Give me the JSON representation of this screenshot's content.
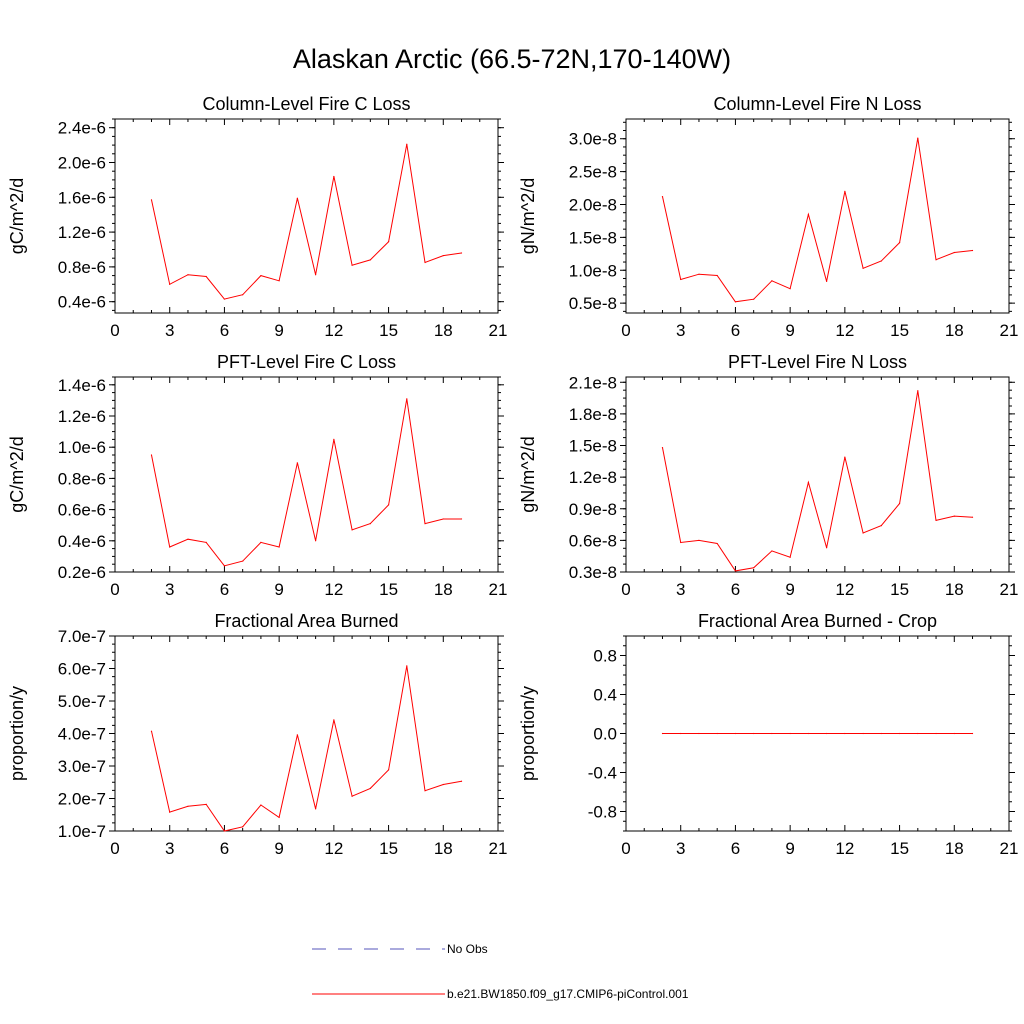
{
  "figure_title": "Alaskan Arctic (66.5-72N,170-140W)",
  "legend": {
    "items": [
      {
        "label": "No Obs",
        "color": "#3333aa",
        "style": "dashed"
      },
      {
        "label": "b.e21.BW1850.f09_g17.CMIP6-piControl.001",
        "color": "#ff0000",
        "style": "solid"
      }
    ]
  },
  "chart_data": [
    {
      "type": "line",
      "title": "Column-Level Fire C Loss",
      "xlabel": "",
      "ylabel": "gC/m^2/d",
      "xlim": [
        0,
        21
      ],
      "ylim": [
        0.27,
        2.5
      ],
      "xticks": [
        0,
        3,
        6,
        9,
        12,
        15,
        18,
        21
      ],
      "yticks": [
        0.4,
        0.8,
        1.2,
        1.6,
        2.0,
        2.4
      ],
      "ytick_labels": [
        "0.4e-6",
        "0.8e-6",
        "1.2e-6",
        "1.6e-6",
        "2.0e-6",
        "2.4e-6"
      ],
      "color": "#ff0000",
      "x": [
        2,
        3,
        4,
        5,
        6,
        7,
        8,
        9,
        10,
        11,
        12,
        13,
        14,
        15,
        16,
        17,
        18,
        19
      ],
      "y": [
        1.57,
        0.6,
        0.71,
        0.69,
        0.43,
        0.48,
        0.7,
        0.64,
        1.59,
        0.71,
        1.84,
        0.82,
        0.88,
        1.09,
        2.21,
        0.85,
        0.93,
        0.96
      ]
    },
    {
      "type": "line",
      "title": "Column-Level Fire N Loss",
      "xlabel": "",
      "ylabel": "gN/m^2/d",
      "xlim": [
        0,
        21
      ],
      "ylim": [
        0.35,
        3.3
      ],
      "xticks": [
        0,
        3,
        6,
        9,
        12,
        15,
        18,
        21
      ],
      "yticks": [
        0.5,
        1.0,
        1.5,
        2.0,
        2.5,
        3.0
      ],
      "ytick_labels": [
        "0.5e-8",
        "1.0e-8",
        "1.5e-8",
        "2.0e-8",
        "2.5e-8",
        "3.0e-8"
      ],
      "color": "#ff0000",
      "x": [
        2,
        3,
        4,
        5,
        6,
        7,
        8,
        9,
        10,
        11,
        12,
        13,
        14,
        15,
        16,
        17,
        18,
        19
      ],
      "y": [
        2.12,
        0.86,
        0.94,
        0.92,
        0.52,
        0.56,
        0.84,
        0.72,
        1.85,
        0.83,
        2.2,
        1.03,
        1.14,
        1.42,
        3.01,
        1.16,
        1.27,
        1.3
      ]
    },
    {
      "type": "line",
      "title": "PFT-Level Fire C Loss",
      "xlabel": "",
      "ylabel": "gC/m^2/d",
      "xlim": [
        0,
        21
      ],
      "ylim": [
        0.2,
        1.45
      ],
      "xticks": [
        0,
        3,
        6,
        9,
        12,
        15,
        18,
        21
      ],
      "yticks": [
        0.2,
        0.4,
        0.6,
        0.8,
        1.0,
        1.2,
        1.4
      ],
      "ytick_labels": [
        "0.2e-6",
        "0.4e-6",
        "0.6e-6",
        "0.8e-6",
        "1.0e-6",
        "1.2e-6",
        "1.4e-6"
      ],
      "color": "#ff0000",
      "x": [
        2,
        3,
        4,
        5,
        6,
        7,
        8,
        9,
        10,
        11,
        12,
        13,
        14,
        15,
        16,
        17,
        18,
        19
      ],
      "y": [
        0.95,
        0.36,
        0.41,
        0.39,
        0.24,
        0.27,
        0.39,
        0.36,
        0.9,
        0.4,
        1.05,
        0.47,
        0.51,
        0.63,
        1.31,
        0.51,
        0.54,
        0.54
      ]
    },
    {
      "type": "line",
      "title": "PFT-Level Fire N Loss",
      "xlabel": "",
      "ylabel": "gN/m^2/d",
      "xlim": [
        0,
        21
      ],
      "ylim": [
        0.3,
        2.15
      ],
      "xticks": [
        0,
        3,
        6,
        9,
        12,
        15,
        18,
        21
      ],
      "yticks": [
        0.3,
        0.6,
        0.9,
        1.2,
        1.5,
        1.8,
        2.1
      ],
      "ytick_labels": [
        "0.3e-8",
        "0.6e-8",
        "0.9e-8",
        "1.2e-8",
        "1.5e-8",
        "1.8e-8",
        "2.1e-8"
      ],
      "color": "#ff0000",
      "x": [
        2,
        3,
        4,
        5,
        6,
        7,
        8,
        9,
        10,
        11,
        12,
        13,
        14,
        15,
        16,
        17,
        18,
        19
      ],
      "y": [
        1.48,
        0.58,
        0.6,
        0.57,
        0.31,
        0.34,
        0.5,
        0.44,
        1.15,
        0.53,
        1.39,
        0.67,
        0.74,
        0.95,
        2.02,
        0.79,
        0.83,
        0.82
      ]
    },
    {
      "type": "line",
      "title": "Fractional Area Burned",
      "xlabel": "",
      "ylabel": "proportion/y",
      "xlim": [
        0,
        21
      ],
      "ylim": [
        1.0,
        7.0
      ],
      "xticks": [
        0,
        3,
        6,
        9,
        12,
        15,
        18,
        21
      ],
      "yticks": [
        1.0,
        2.0,
        3.0,
        4.0,
        5.0,
        6.0,
        7.0
      ],
      "ytick_labels": [
        "1.0e-7",
        "2.0e-7",
        "3.0e-7",
        "4.0e-7",
        "5.0e-7",
        "6.0e-7",
        "7.0e-7"
      ],
      "color": "#ff0000",
      "x": [
        2,
        3,
        4,
        5,
        6,
        7,
        8,
        9,
        10,
        11,
        12,
        13,
        14,
        15,
        16,
        17,
        18,
        19
      ],
      "y": [
        4.07,
        1.58,
        1.76,
        1.82,
        1.0,
        1.13,
        1.8,
        1.42,
        3.96,
        1.68,
        4.42,
        2.07,
        2.31,
        2.88,
        6.08,
        2.24,
        2.43,
        2.53
      ]
    },
    {
      "type": "line",
      "title": "Fractional Area Burned - Crop",
      "xlabel": "",
      "ylabel": "proportion/y",
      "xlim": [
        0,
        21
      ],
      "ylim": [
        -1.0,
        1.0
      ],
      "xticks": [
        0,
        3,
        6,
        9,
        12,
        15,
        18,
        21
      ],
      "yticks": [
        -0.8,
        -0.4,
        0.0,
        0.4,
        0.8
      ],
      "ytick_labels": [
        "-0.8",
        "-0.4",
        "0.0",
        "0.4",
        "0.8"
      ],
      "color": "#ff0000",
      "x": [
        2,
        3,
        4,
        5,
        6,
        7,
        8,
        9,
        10,
        11,
        12,
        13,
        14,
        15,
        16,
        17,
        18,
        19
      ],
      "y": [
        0,
        0,
        0,
        0,
        0,
        0,
        0,
        0,
        0,
        0,
        0,
        0,
        0,
        0,
        0,
        0,
        0,
        0
      ]
    }
  ]
}
